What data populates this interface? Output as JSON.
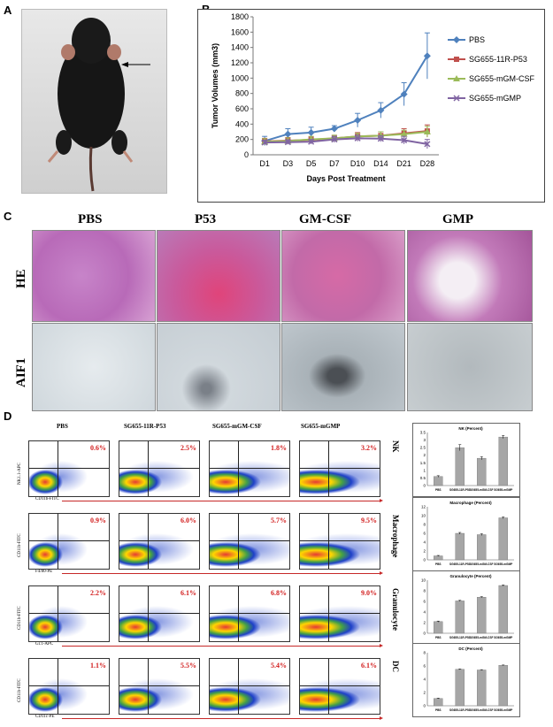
{
  "panels": {
    "a": "A",
    "b": "B",
    "c": "C",
    "d": "D"
  },
  "chart_data": [
    {
      "type": "line",
      "panel": "B",
      "xlabel": "Days Post Treatment",
      "ylabel": "Tumor Volumes (mm3)",
      "categories": [
        "D1",
        "D3",
        "D5",
        "D7",
        "D10",
        "D14",
        "D21",
        "D28"
      ],
      "ylim": [
        0,
        1800
      ],
      "yticks": [
        0,
        200,
        400,
        600,
        800,
        1000,
        1200,
        1400,
        1600,
        1800
      ],
      "legend_position": "right",
      "series": [
        {
          "name": "PBS",
          "color": "#4f81bd",
          "marker": "diamond",
          "values": [
            180,
            270,
            290,
            340,
            450,
            580,
            790,
            1290
          ],
          "errors": [
            60,
            70,
            70,
            40,
            90,
            100,
            150,
            300
          ]
        },
        {
          "name": "SG655-11R-P53",
          "color": "#c0504d",
          "marker": "square",
          "values": [
            175,
            185,
            195,
            215,
            240,
            250,
            280,
            310
          ],
          "errors": [
            40,
            40,
            40,
            40,
            50,
            50,
            60,
            80
          ]
        },
        {
          "name": "SG655-mGM-CSF",
          "color": "#9bbb59",
          "marker": "triangle",
          "values": [
            170,
            180,
            200,
            215,
            240,
            250,
            270,
            300
          ],
          "errors": [
            40,
            40,
            40,
            40,
            40,
            50,
            50,
            70
          ]
        },
        {
          "name": "SG655-mGMP",
          "color": "#8064a2",
          "marker": "x",
          "values": [
            160,
            165,
            170,
            200,
            215,
            210,
            190,
            140
          ],
          "errors": [
            30,
            30,
            30,
            40,
            40,
            40,
            50,
            60
          ]
        }
      ]
    },
    {
      "type": "bar",
      "panel": "D-NK",
      "title": "NK (Percent)",
      "categories": [
        "PBS",
        "SG655-11R-P53",
        "SG655-mGM-CSF",
        "SG655-mGMP"
      ],
      "values": [
        0.6,
        2.5,
        1.8,
        3.2
      ],
      "errors": [
        0.05,
        0.2,
        0.1,
        0.1
      ],
      "ylim": [
        0,
        3.5
      ],
      "yticks": [
        "0",
        "0.5",
        "1",
        "1.5",
        "2",
        "2.5",
        "3",
        "3.5"
      ]
    },
    {
      "type": "bar",
      "panel": "D-Macrophage",
      "title": "Macrophage (Percent)",
      "categories": [
        "PBS",
        "SG655-11R-P53",
        "SG655-mGM-CSF",
        "SG655-mGMP"
      ],
      "values": [
        0.9,
        6.0,
        5.7,
        9.5
      ],
      "errors": [
        0.1,
        0.2,
        0.2,
        0.2
      ],
      "ylim": [
        0,
        12
      ],
      "yticks": [
        "0",
        "2",
        "4",
        "6",
        "8",
        "10",
        "12"
      ]
    },
    {
      "type": "bar",
      "panel": "D-Granulocyte",
      "title": "Granulocyte (Percent)",
      "categories": [
        "PBS",
        "SG655-11R-P53",
        "SG655-mGM-CSF",
        "SG655-mGMP"
      ],
      "values": [
        2.2,
        6.1,
        6.8,
        9.0
      ],
      "errors": [
        0.1,
        0.1,
        0.1,
        0.1
      ],
      "ylim": [
        0,
        10
      ],
      "yticks": [
        "0",
        "2",
        "4",
        "6",
        "8",
        "10"
      ]
    },
    {
      "type": "bar",
      "panel": "D-DC",
      "title": "DC (Percent)",
      "categories": [
        "PBS",
        "SG655-11R-P53",
        "SG655-mGM-CSF",
        "SG655-mGMP"
      ],
      "values": [
        1.1,
        5.5,
        5.4,
        6.1
      ],
      "errors": [
        0.05,
        0.05,
        0.05,
        0.05
      ],
      "ylim": [
        0,
        8
      ],
      "yticks": [
        "0",
        "2",
        "4",
        "6",
        "8"
      ]
    }
  ],
  "histology": {
    "columns": [
      "PBS",
      "P53",
      "GM-CSF",
      "GMP"
    ],
    "rows": [
      "HE",
      "AIF1"
    ]
  },
  "flow": {
    "columns": [
      "PBS",
      "SG655-11R-P53",
      "SG655-mGM-CSF",
      "SG655-mGMP"
    ],
    "rows": [
      {
        "ylabel": "NK1.1-APC",
        "xlabel": "CD11b-FITC",
        "side": "NK",
        "pcts": [
          "0.6%",
          "2.5%",
          "1.8%",
          "3.2%"
        ]
      },
      {
        "ylabel": "CD11b-FITC",
        "xlabel": "F4/80-PE",
        "side": "Macrophage",
        "pcts": [
          "0.9%",
          "6.0%",
          "5.7%",
          "9.5%"
        ]
      },
      {
        "ylabel": "CD11b-FITC",
        "xlabel": "Gr.1-APC",
        "side": "Granulocyte",
        "pcts": [
          "2.2%",
          "6.1%",
          "6.8%",
          "9.0%"
        ]
      },
      {
        "ylabel": "CD11b-FITC",
        "xlabel": "CD11c-PE",
        "side": "DC",
        "pcts": [
          "1.1%",
          "5.5%",
          "5.4%",
          "6.1%"
        ]
      }
    ]
  }
}
